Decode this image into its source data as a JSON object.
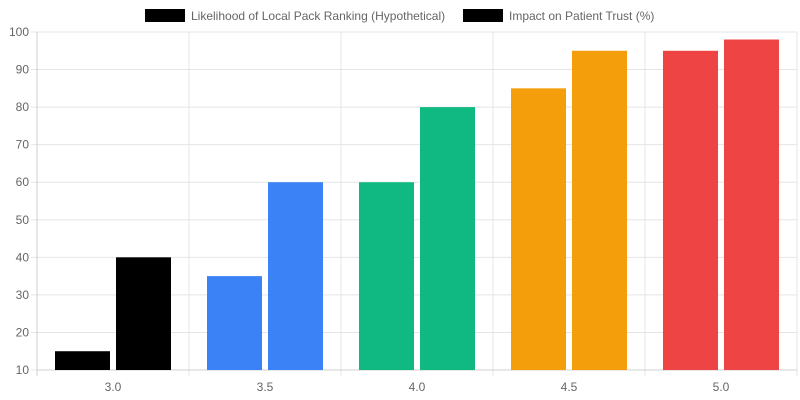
{
  "chart_data": {
    "type": "bar",
    "categories": [
      "3.0",
      "3.5",
      "4.0",
      "4.5",
      "5.0"
    ],
    "series": [
      {
        "name": "Likelihood of Local Pack Ranking (Hypothetical)",
        "values": [
          15,
          35,
          60,
          85,
          95
        ],
        "legend_color": "#000000"
      },
      {
        "name": "Impact on Patient Trust (%)",
        "values": [
          40,
          60,
          80,
          95,
          98
        ],
        "legend_color": "#000000"
      }
    ],
    "category_colors": [
      "#000000",
      "#3b82f6",
      "#10b981",
      "#f59e0b",
      "#ef4444"
    ],
    "ylim": [
      10,
      100
    ],
    "yticks": [
      "10",
      "20",
      "30",
      "40",
      "50",
      "60",
      "70",
      "80",
      "90",
      "100"
    ],
    "grid": true,
    "legend_position": "top"
  }
}
